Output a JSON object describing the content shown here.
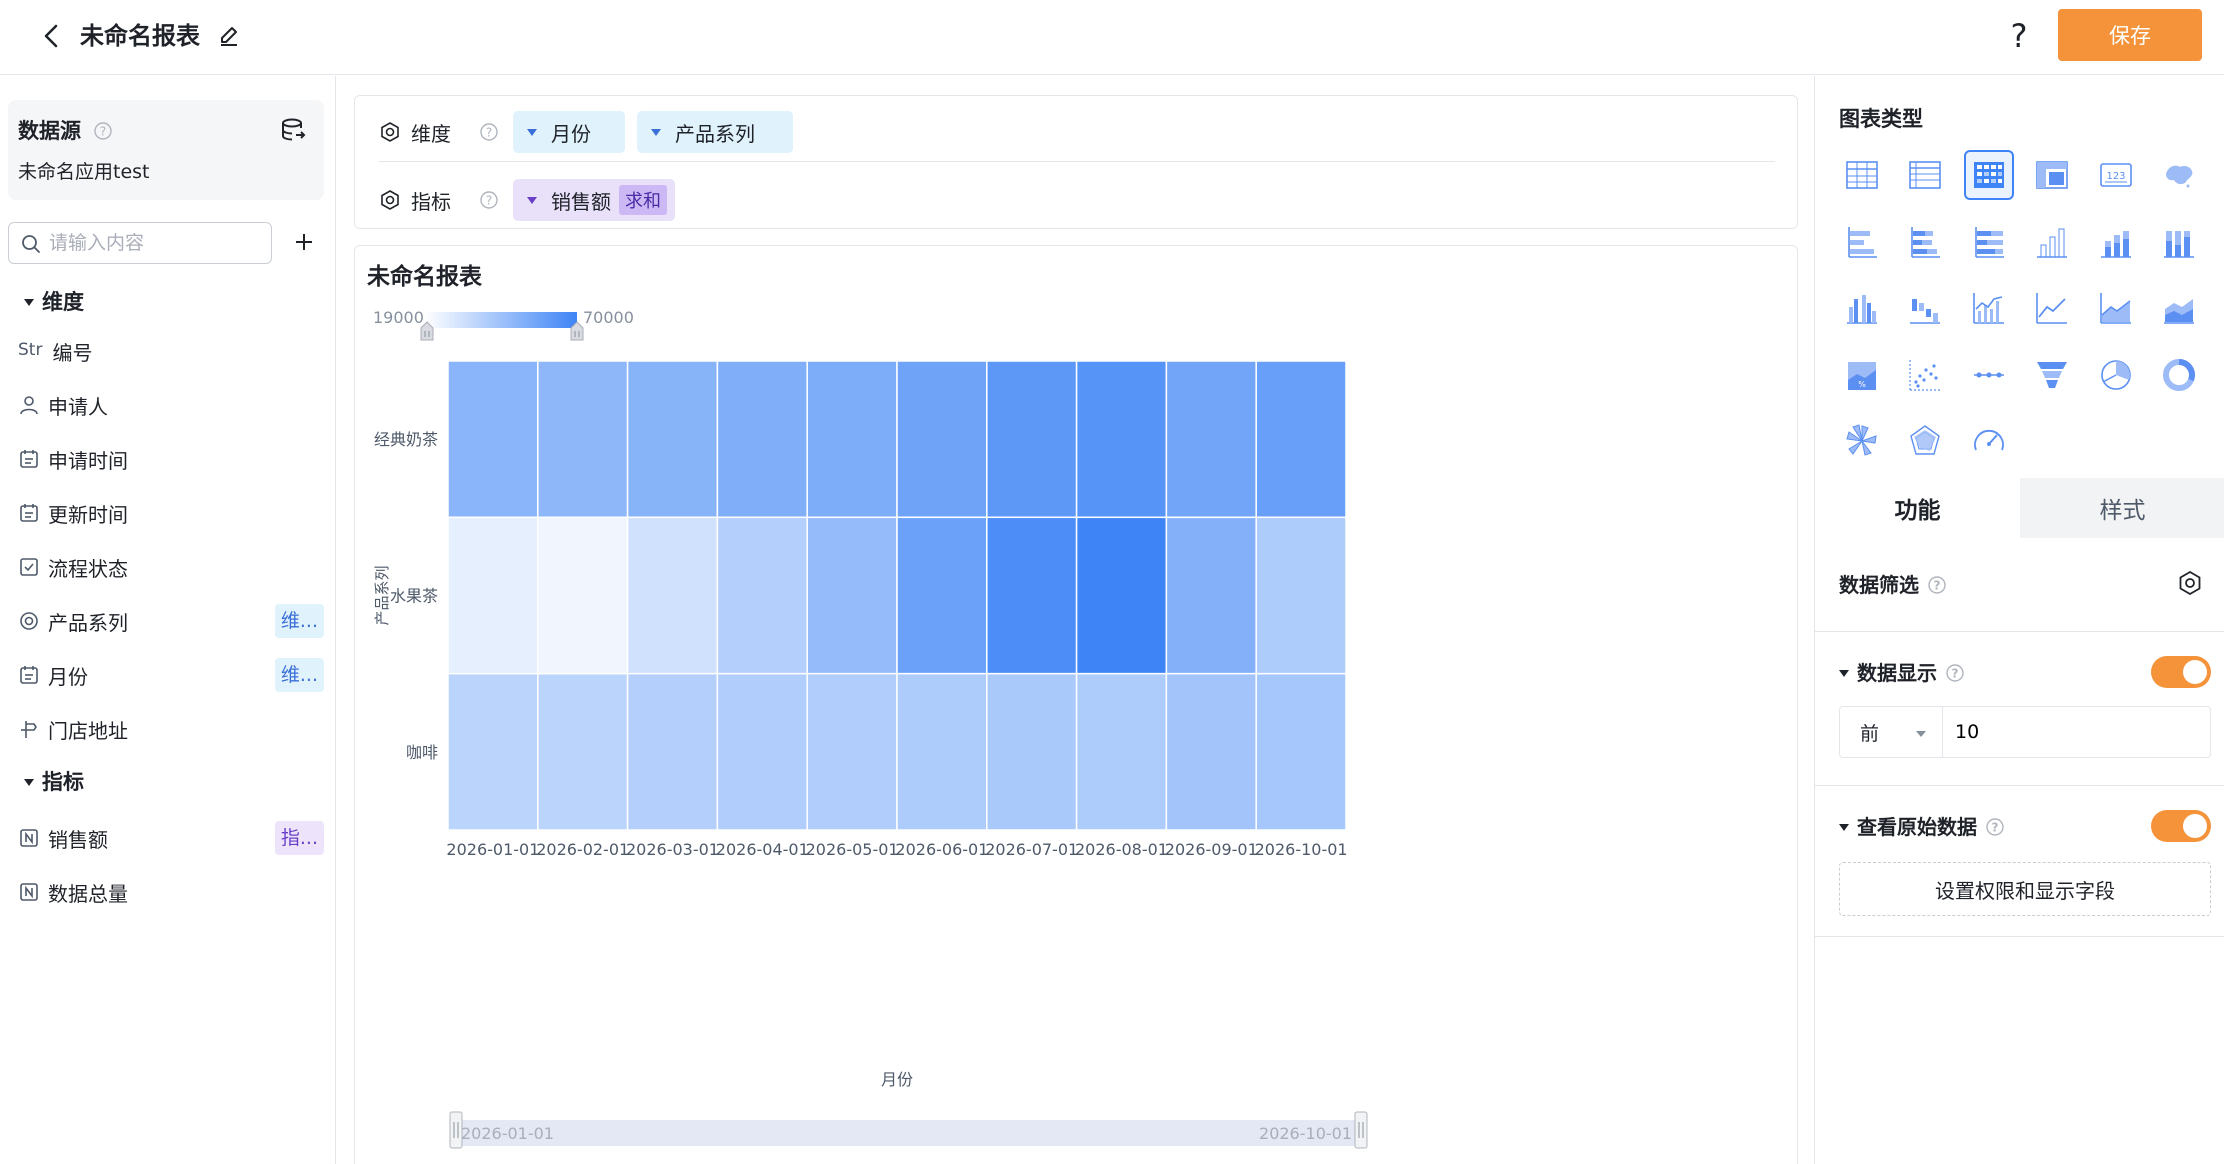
{
  "header": {
    "title": "未命名报表",
    "help_label": "?",
    "save_label": "保存"
  },
  "left_panel": {
    "datasource_title": "数据源",
    "datasource_name": "未命名应用test",
    "search_placeholder": "请输入内容",
    "dimension_group": "维度",
    "indicator_group": "指标",
    "dimensions": [
      {
        "type_label": "Str",
        "label": "编号",
        "icon": "string-icon",
        "tag": ""
      },
      {
        "label": "申请人",
        "icon": "person-icon",
        "tag": ""
      },
      {
        "label": "申请时间",
        "icon": "calendar-icon",
        "tag": ""
      },
      {
        "label": "更新时间",
        "icon": "calendar-icon",
        "tag": ""
      },
      {
        "label": "流程状态",
        "icon": "checkbox-icon",
        "tag": ""
      },
      {
        "label": "产品系列",
        "icon": "option-icon",
        "tag": "维..."
      },
      {
        "label": "月份",
        "icon": "calendar-icon",
        "tag": "维..."
      },
      {
        "label": "门店地址",
        "icon": "location-icon",
        "tag": ""
      }
    ],
    "indicators": [
      {
        "label": "销售额",
        "icon": "number-icon",
        "tag": "指..."
      },
      {
        "label": "数据总量",
        "icon": "number-icon",
        "tag": ""
      }
    ]
  },
  "config": {
    "dimension_label": "维度",
    "indicator_label": "指标",
    "dimension_pills": [
      "月份",
      "产品系列"
    ],
    "indicator_pill": "销售额",
    "aggregation": "求和"
  },
  "chart": {
    "title": "未命名报表",
    "legend_min": "19000",
    "legend_max": "70000",
    "zoom_start": "2026-01-01",
    "zoom_end": "2026-10-01"
  },
  "chart_data": {
    "type": "heatmap",
    "title": "未命名报表",
    "xlabel": "月份",
    "ylabel": "产品系列",
    "x": [
      "2026-01-01",
      "2026-02-01",
      "2026-03-01",
      "2026-04-01",
      "2026-05-01",
      "2026-06-01",
      "2026-07-01",
      "2026-08-01",
      "2026-09-01",
      "2026-10-01"
    ],
    "y": [
      "经典奶茶",
      "水果茶",
      "咖啡"
    ],
    "visual_map_range": [
      19000,
      70000
    ],
    "low_color": "#ffffff",
    "high_color": "#3e84f6",
    "values": [
      [
        48000,
        47000,
        49000,
        51000,
        52000,
        56000,
        61000,
        63000,
        55000,
        58000
      ],
      [
        22000,
        19000,
        28000,
        36000,
        45000,
        57000,
        66000,
        70000,
        50000,
        38000
      ],
      [
        34000,
        34000,
        36000,
        37000,
        37000,
        38000,
        39000,
        38000,
        41000,
        40000
      ]
    ]
  },
  "right_panel": {
    "chart_type_title": "图表类型",
    "chart_types": [
      "table-icon",
      "detail-table-icon",
      "heatmap-table-icon",
      "cross-table-icon",
      "number-card-icon",
      "map-icon",
      "bar-icon",
      "stacked-bar-icon",
      "percent-bar-icon",
      "column-icon",
      "stacked-column-icon",
      "percent-column-icon",
      "multi-column-icon",
      "waterfall-icon",
      "combo-icon",
      "line-icon",
      "area-icon",
      "stacked-area-icon",
      "percent-area-icon",
      "scatter-icon",
      "dot-line-icon",
      "funnel-icon",
      "pie-icon",
      "ring-icon",
      "rose-icon",
      "radar-icon",
      "gauge-icon"
    ],
    "selected_chart_type": "heatmap-table-icon",
    "tab_function": "功能",
    "tab_style": "样式",
    "data_filter_title": "数据筛选",
    "data_display_title": "数据显示",
    "topn_select": "前",
    "topn_value": "10",
    "raw_data_title": "查看原始数据",
    "permission_button": "设置权限和显示字段",
    "accent_color": "#f4933a"
  }
}
